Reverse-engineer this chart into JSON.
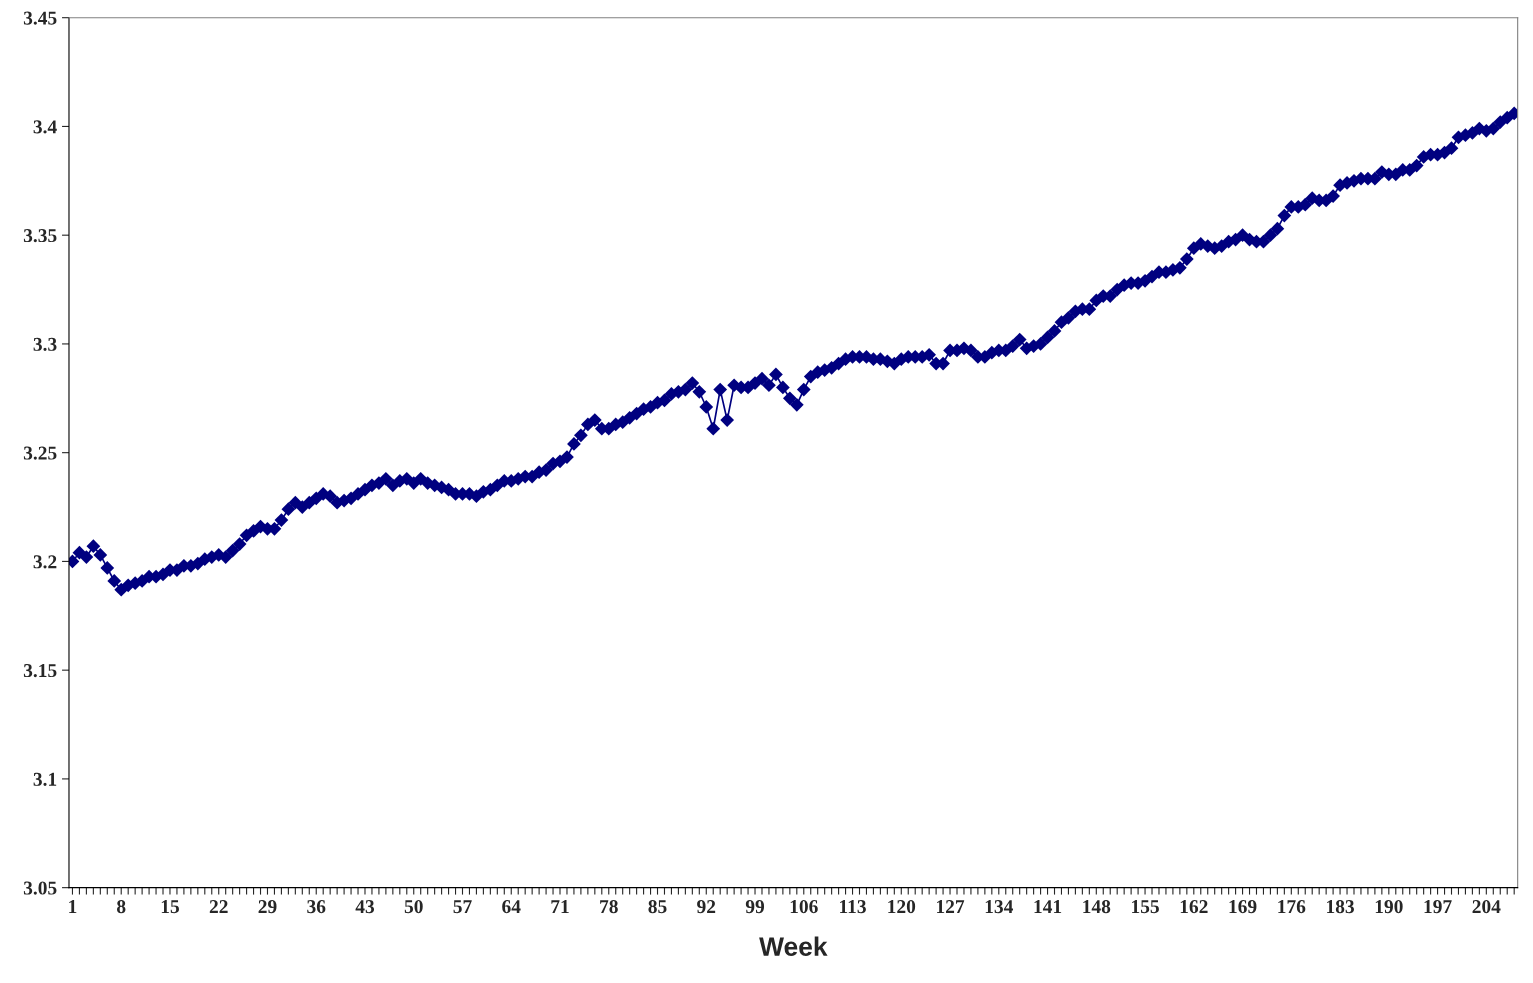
{
  "chart_data": {
    "type": "line",
    "xlabel": "Week",
    "categories": [
      "1",
      null,
      null,
      null,
      null,
      null,
      null,
      "8",
      null,
      null,
      null,
      null,
      null,
      null,
      "15",
      null,
      null,
      null,
      null,
      null,
      null,
      "22",
      null,
      null,
      null,
      null,
      null,
      null,
      "29",
      null,
      null,
      null,
      null,
      null,
      null,
      "36",
      null,
      null,
      null,
      null,
      null,
      null,
      "43",
      null,
      null,
      null,
      null,
      null,
      null,
      "50",
      null,
      null,
      null,
      null,
      null,
      null,
      "57",
      null,
      null,
      null,
      null,
      null,
      null,
      "64",
      null,
      null,
      null,
      null,
      null,
      null,
      "71",
      null,
      null,
      null,
      null,
      null,
      null,
      "78",
      null,
      null,
      null,
      null,
      null,
      null,
      "85",
      null,
      null,
      null,
      null,
      null,
      null,
      "92",
      null,
      null,
      null,
      null,
      null,
      null,
      "99",
      null,
      null,
      null,
      null,
      null,
      null,
      "106",
      null,
      null,
      null,
      null,
      null,
      null,
      "113",
      null,
      null,
      null,
      null,
      null,
      null,
      "120",
      null,
      null,
      null,
      null,
      null,
      null,
      "127",
      null,
      null,
      null,
      null,
      null,
      null,
      "134",
      null,
      null,
      null,
      null,
      null,
      null,
      "141",
      null,
      null,
      null,
      null,
      null,
      null,
      "148",
      null,
      null,
      null,
      null,
      null,
      null,
      "155",
      null,
      null,
      null,
      null,
      null,
      null,
      "162",
      null,
      null,
      null,
      null,
      null,
      null,
      "169",
      null,
      null,
      null,
      null,
      null,
      null,
      "176",
      null,
      null,
      null,
      null,
      null,
      null,
      "183",
      null,
      null,
      null,
      null,
      null,
      null,
      "190",
      null,
      null,
      null,
      null,
      null,
      null,
      "197",
      null,
      null,
      null,
      null,
      null,
      null,
      "204",
      null,
      null,
      null,
      null
    ],
    "series": [
      {
        "color": "#000080",
        "values": [
          3.2,
          3.204,
          3.202,
          3.207,
          3.203,
          3.197,
          3.191,
          3.187,
          3.189,
          3.19,
          3.191,
          3.193,
          3.193,
          3.194,
          3.196,
          3.196,
          3.198,
          3.198,
          3.199,
          3.201,
          3.202,
          3.203,
          3.202,
          3.205,
          3.208,
          3.212,
          3.214,
          3.216,
          3.215,
          3.215,
          3.219,
          3.224,
          3.227,
          3.225,
          3.227,
          3.229,
          3.231,
          3.23,
          3.227,
          3.228,
          3.229,
          3.231,
          3.233,
          3.235,
          3.236,
          3.238,
          3.235,
          3.237,
          3.238,
          3.236,
          3.238,
          3.236,
          3.235,
          3.234,
          3.233,
          3.231,
          3.231,
          3.231,
          3.23,
          3.232,
          3.233,
          3.235,
          3.237,
          3.237,
          3.238,
          3.239,
          3.239,
          3.241,
          3.242,
          3.245,
          3.246,
          3.248,
          3.254,
          3.258,
          3.263,
          3.265,
          3.261,
          3.261,
          3.263,
          3.264,
          3.266,
          3.268,
          3.27,
          3.271,
          3.273,
          3.274,
          3.277,
          3.278,
          3.279,
          3.282,
          3.278,
          3.271,
          3.261,
          3.279,
          3.265,
          3.281,
          3.28,
          3.28,
          3.282,
          3.284,
          3.281,
          3.286,
          3.28,
          3.275,
          3.272,
          3.279,
          3.285,
          3.287,
          3.288,
          3.289,
          3.291,
          3.293,
          3.294,
          3.294,
          3.294,
          3.293,
          3.293,
          3.292,
          3.291,
          3.293,
          3.294,
          3.294,
          3.294,
          3.295,
          3.291,
          3.291,
          3.297,
          3.297,
          3.298,
          3.297,
          3.294,
          3.294,
          3.296,
          3.297,
          3.297,
          3.299,
          3.302,
          3.298,
          3.299,
          3.3,
          3.303,
          3.306,
          3.31,
          3.312,
          3.315,
          3.316,
          3.316,
          3.32,
          3.322,
          3.322,
          3.325,
          3.327,
          3.328,
          3.328,
          3.329,
          3.331,
          3.333,
          3.333,
          3.334,
          3.335,
          3.339,
          3.344,
          3.346,
          3.345,
          3.344,
          3.345,
          3.347,
          3.348,
          3.35,
          3.348,
          3.347,
          3.347,
          3.35,
          3.353,
          3.359,
          3.363,
          3.363,
          3.364,
          3.367,
          3.366,
          3.366,
          3.368,
          3.373,
          3.374,
          3.375,
          3.376,
          3.376,
          3.376,
          3.379,
          3.378,
          3.378,
          3.38,
          3.38,
          3.382,
          3.386,
          3.387,
          3.387,
          3.388,
          3.39,
          3.395,
          3.396,
          3.397,
          3.399,
          3.398,
          3.399,
          3.402,
          3.404,
          3.406
        ]
      }
    ],
    "ylim": [
      3.05,
      3.45
    ],
    "yticks": [
      3.05,
      3.1,
      3.15,
      3.2,
      3.25,
      3.3,
      3.35,
      3.4,
      3.45
    ],
    "grid": false,
    "legend": false,
    "marker": "diamond",
    "line_style": "solid"
  }
}
